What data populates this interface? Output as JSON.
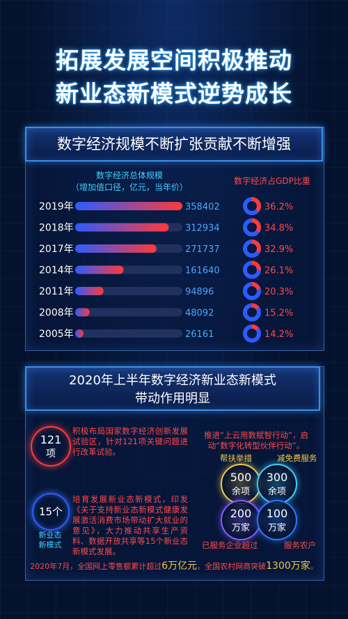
{
  "title": {
    "line1": "拓展发展空间积极推动",
    "line2": "新业态新模式逆势成长"
  },
  "section1": {
    "heading": "数字经济规模不断扩张贡献不断增强",
    "scale_label_1": "数字经济总体规模",
    "scale_label_2": "（增加值口径，亿元，当年价）",
    "gdp_label": "数字经济占GDP比重"
  },
  "chart_data": [
    {
      "type": "bar",
      "title": "数字经济总体规模",
      "subtitle": "（增加值口径，亿元，当年价）",
      "categories": [
        "2019年",
        "2018年",
        "2017年",
        "2014年",
        "2011年",
        "2008年",
        "2005年"
      ],
      "values": [
        358402,
        312934,
        271737,
        161640,
        94896,
        48092,
        26161
      ],
      "value_labels": [
        "358402",
        "312934",
        "271737",
        "161640",
        "94896",
        "48092",
        "26161"
      ],
      "xlim": [
        0,
        358402
      ],
      "colors": {
        "start": "#2d5bff",
        "end": "#ff3a3a",
        "track": "#22305e"
      }
    },
    {
      "type": "pie",
      "title": "数字经济占GDP比重",
      "categories": [
        "2019年",
        "2018年",
        "2017年",
        "2014年",
        "2011年",
        "2008年",
        "2005年"
      ],
      "values": [
        36.2,
        34.8,
        32.9,
        26.1,
        20.3,
        15.2,
        14.2
      ],
      "value_labels": [
        "36.2%",
        "34.8%",
        "32.9%",
        "26.1%",
        "20.3%",
        "15.2%",
        "14.2%"
      ],
      "colors": {
        "share": "#ff3a3a",
        "rest": "#2d5bff"
      }
    }
  ],
  "section2": {
    "heading_1": "2020年上半年数字经济新业态新模式",
    "heading_2": "带动作用明显",
    "circle1_top": "121",
    "circle1_bottom": "项",
    "text1": "积极布局国家数字经济创新发展试验区，针对121项关键问题进行改革试验。",
    "circle2_value": "15个",
    "circle2_caption_1": "新业态",
    "circle2_caption_2": "新模式",
    "text2": "培育发展新业态新模式，印发《关于支持新业态新模式健康发展激活消费市场带动扩大就业的意见》，大力推动共享生产资料、数据开放共享等15个新业态新模式发展。",
    "initiative": "推进“上云用数赋智行动”，启动“数字化转型伙伴行动”。",
    "bubbles": [
      {
        "label": "帮扶举措",
        "top": "500",
        "bottom": "余项"
      },
      {
        "label": "减免费服务",
        "top": "300",
        "bottom": "余项"
      },
      {
        "label": "已服务企业超过",
        "top": "200",
        "bottom": "万家"
      },
      {
        "label": "服务农户",
        "top": "100",
        "bottom": "万家"
      }
    ],
    "footer_a": "2020年7月，全国网上零售额累计超过",
    "footer_b": "6万亿元",
    "footer_c": "，全国农村网商突破",
    "footer_d": "1300万家",
    "footer_e": "。"
  },
  "colors": {
    "cyan": "#3fd0ff",
    "red": "#ff3a3a",
    "blue": "#2d5bff",
    "gold": "#f2c94c",
    "background": "#05122e"
  }
}
